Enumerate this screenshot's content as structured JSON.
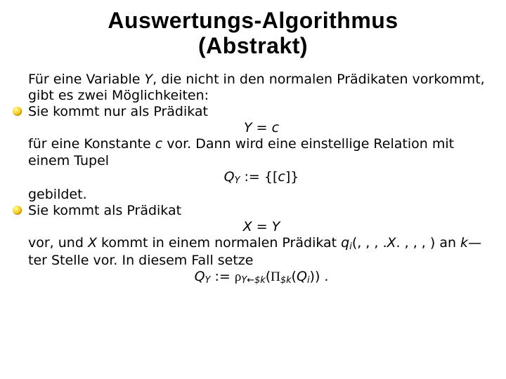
{
  "colors": {
    "background": "#ffffff",
    "text": "#000000",
    "bullet_gradient_inner": "#fff9a0",
    "bullet_gradient_mid": "#ffe24a",
    "bullet_gradient_outer": "#f2b40c",
    "bullet_edge": "#b47a00"
  },
  "typography": {
    "title_font": "Arial",
    "title_weight": 900,
    "title_size_pt": 24,
    "body_font": "Verdana",
    "body_size_pt": 14,
    "line_height": 1.22
  },
  "title_line1": "Auswertungs-Algorithmus",
  "title_line2": "(Abstrakt)",
  "p1a": "Für eine Variable ",
  "p1_var": "Y",
  "p1b": ", die nicht in den normalen Prädikaten vorkommt, gibt es zwei Möglichkeiten:",
  "b1": "Sie kommt nur als Prädikat",
  "eq1_lhs": "Y",
  "eq1_eq": " = ",
  "eq1_rhs": "c",
  "p2a": "für eine Konstante ",
  "p2_var": "c",
  "p2b": " vor. Dann wird eine einstellige Relation mit einem Tupel",
  "eq2_Q": "Q",
  "eq2_sub": "Y",
  "eq2_def": " := {[",
  "eq2_c": "c",
  "eq2_close": "]}",
  "p3": "gebildet.",
  "b2": "Sie kommt als Prädikat",
  "eq3_X": "X",
  "eq3_eq": " = ",
  "eq3_Y": "Y",
  "p4a": "vor, und ",
  "p4_X": "X",
  "p4b": " kommt in einem normalen Prädikat ",
  "p4_q": "q",
  "p4_sub": "i",
  "p4c": "(, , , .",
  "p4_Xdot": "X",
  "p4d": ". , , , ) an ",
  "p4_k": "k",
  "p4e": "—ter Stelle vor. In diesem Fall setze",
  "eq4_Q": "Q",
  "eq4_subY": "Y",
  "eq4_def": " := ",
  "eq4_rho": "ρ",
  "eq4_rho_sub": "Y←$k",
  "eq4_open": "(",
  "eq4_Pi": "Π",
  "eq4_Pi_sub": "$k",
  "eq4_open2": "(",
  "eq4_Qi": "Q",
  "eq4_Qi_sub": "i",
  "eq4_close": ")) .",
  "equations": [
    {
      "id": "predicate_Yc",
      "form": "Y = c"
    },
    {
      "id": "Q_Y_singleton",
      "form": "Q_Y := {[c]}"
    },
    {
      "id": "predicate_XY",
      "form": "X = Y"
    },
    {
      "id": "Q_Y_projection",
      "form": "Q_Y := ρ_{Y←$k}(Π_{$k}(Q_i))"
    }
  ]
}
